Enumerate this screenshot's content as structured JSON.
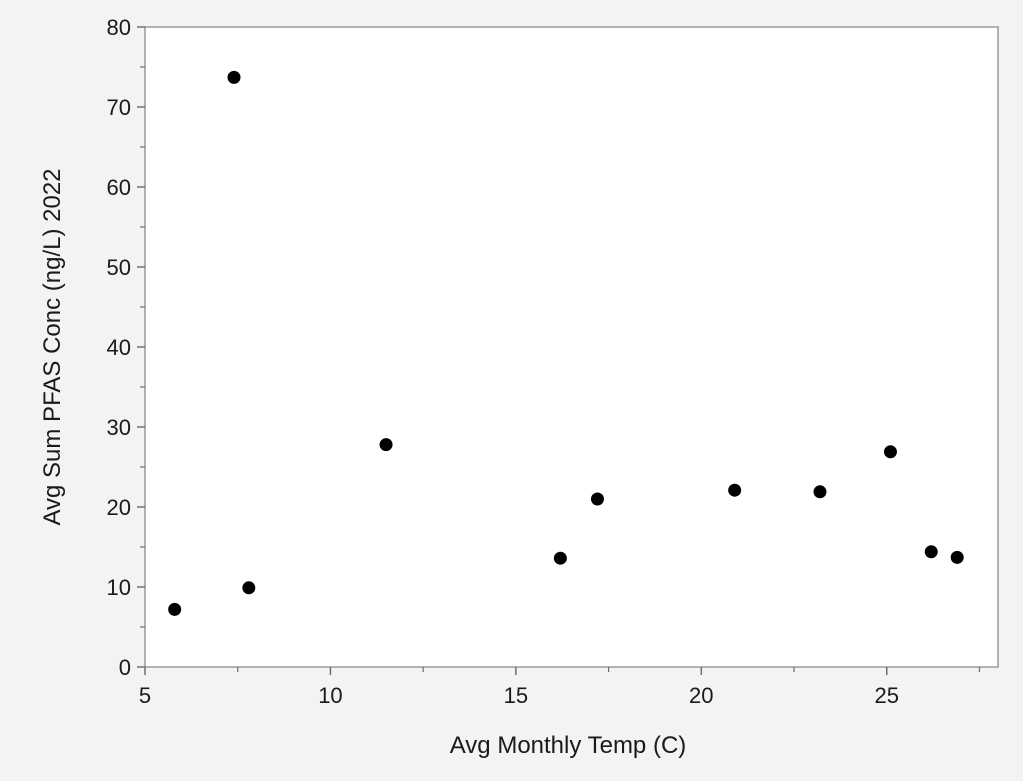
{
  "chart_data": {
    "type": "scatter",
    "title": "",
    "xlabel": "Avg Monthly Temp (C)",
    "ylabel": "Avg Sum PFAS Conc (ng/L) 2022",
    "xlim": [
      5,
      28
    ],
    "ylim": [
      0,
      80
    ],
    "x_ticks": [
      5,
      10,
      15,
      20,
      25
    ],
    "y_ticks": [
      0,
      10,
      20,
      30,
      40,
      50,
      60,
      70,
      80
    ],
    "grid": false,
    "legend": "none",
    "point_color": "#000000",
    "series": [
      {
        "points": [
          {
            "x": 5.8,
            "y": 7.2
          },
          {
            "x": 7.4,
            "y": 73.7
          },
          {
            "x": 7.8,
            "y": 9.9
          },
          {
            "x": 11.5,
            "y": 27.8
          },
          {
            "x": 16.2,
            "y": 13.6
          },
          {
            "x": 17.2,
            "y": 21.0
          },
          {
            "x": 20.9,
            "y": 22.1
          },
          {
            "x": 23.2,
            "y": 21.9
          },
          {
            "x": 25.1,
            "y": 26.9
          },
          {
            "x": 26.2,
            "y": 14.4
          },
          {
            "x": 26.9,
            "y": 13.7
          }
        ]
      }
    ]
  }
}
